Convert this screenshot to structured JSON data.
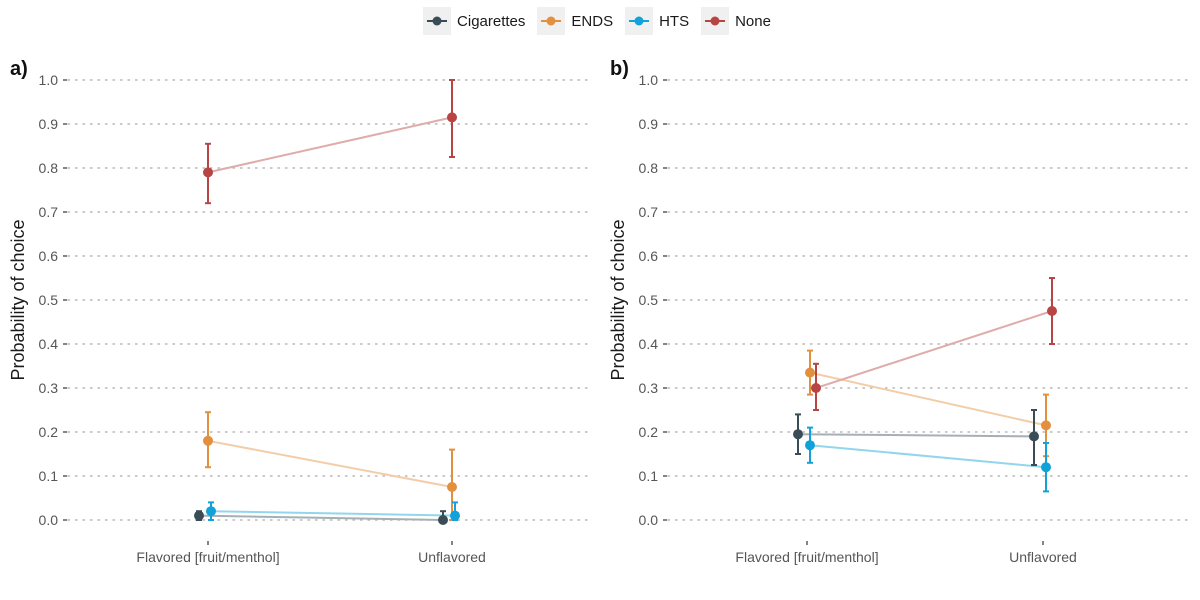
{
  "chart_data": {
    "type": "line",
    "legend": {
      "placement": "top",
      "entries": [
        {
          "name": "Cigarettes",
          "color": "#3a4d57"
        },
        {
          "name": "ENDS",
          "color": "#e28f3e"
        },
        {
          "name": "HTS",
          "color": "#10a2d8"
        },
        {
          "name": "None",
          "color": "#b84444"
        }
      ]
    },
    "panels": [
      {
        "tag": "a)",
        "ylabel": "Probability of choice",
        "xlabel": "",
        "categories": [
          "Flavored [fruit/menthol]",
          "Unflavored"
        ],
        "ylim": [
          0,
          1
        ],
        "yticks": [
          "0.0",
          "0.1",
          "0.2",
          "0.3",
          "0.4",
          "0.5",
          "0.6",
          "0.7",
          "0.8",
          "0.9",
          "1.0"
        ],
        "grid": "horizontal dotted",
        "series": [
          {
            "name": "Cigarettes",
            "values": [
              0.01,
              0.0
            ],
            "lower": [
              0.0,
              0.0
            ],
            "upper": [
              0.02,
              0.02
            ]
          },
          {
            "name": "ENDS",
            "values": [
              0.18,
              0.075
            ],
            "lower": [
              0.12,
              0.0
            ],
            "upper": [
              0.245,
              0.16
            ]
          },
          {
            "name": "HTS",
            "values": [
              0.02,
              0.01
            ],
            "lower": [
              0.0,
              0.0
            ],
            "upper": [
              0.04,
              0.04
            ]
          },
          {
            "name": "None",
            "values": [
              0.79,
              0.915
            ],
            "lower": [
              0.72,
              0.825
            ],
            "upper": [
              0.855,
              1.0
            ]
          }
        ]
      },
      {
        "tag": "b)",
        "ylabel": "Probability of choice",
        "xlabel": "",
        "categories": [
          "Flavored [fruit/menthol]",
          "Unflavored"
        ],
        "ylim": [
          0,
          1
        ],
        "yticks": [
          "0.0",
          "0.1",
          "0.2",
          "0.3",
          "0.4",
          "0.5",
          "0.6",
          "0.7",
          "0.8",
          "0.9",
          "1.0"
        ],
        "grid": "horizontal dotted",
        "series": [
          {
            "name": "Cigarettes",
            "values": [
              0.195,
              0.19
            ],
            "lower": [
              0.15,
              0.125
            ],
            "upper": [
              0.24,
              0.25
            ]
          },
          {
            "name": "ENDS",
            "values": [
              0.335,
              0.215
            ],
            "lower": [
              0.285,
              0.145
            ],
            "upper": [
              0.385,
              0.285
            ]
          },
          {
            "name": "HTS",
            "values": [
              0.17,
              0.12
            ],
            "lower": [
              0.13,
              0.065
            ],
            "upper": [
              0.21,
              0.175
            ]
          },
          {
            "name": "None",
            "values": [
              0.3,
              0.475
            ],
            "lower": [
              0.25,
              0.4
            ],
            "upper": [
              0.355,
              0.55
            ]
          }
        ]
      }
    ]
  }
}
